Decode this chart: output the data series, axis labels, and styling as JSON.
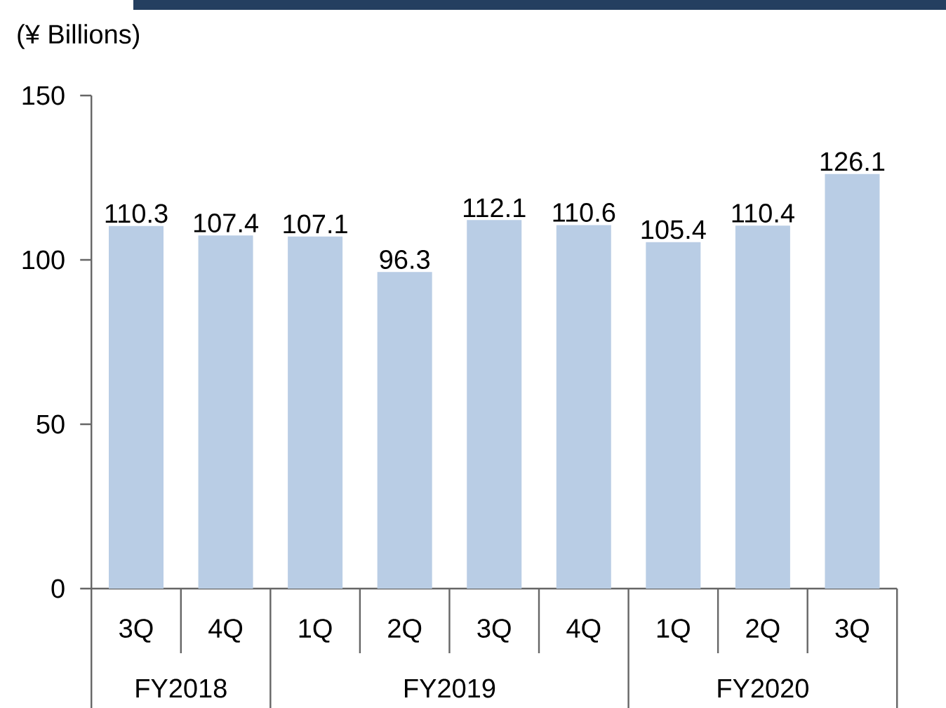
{
  "chart_data": {
    "type": "bar",
    "ylabel": "(¥ Billions)",
    "categories": [
      "3Q",
      "4Q",
      "1Q",
      "2Q",
      "3Q",
      "4Q",
      "1Q",
      "2Q",
      "3Q"
    ],
    "values": [
      110.3,
      107.4,
      107.1,
      96.3,
      112.1,
      110.6,
      105.4,
      110.4,
      126.1
    ],
    "color": "#b9cde5",
    "data_labels": true,
    "ylim": [
      0,
      150
    ],
    "yticks": [
      0,
      50,
      100,
      150
    ],
    "grid": false,
    "annotations": [
      "FY2018",
      "FY2019",
      "FY2020"
    ]
  }
}
